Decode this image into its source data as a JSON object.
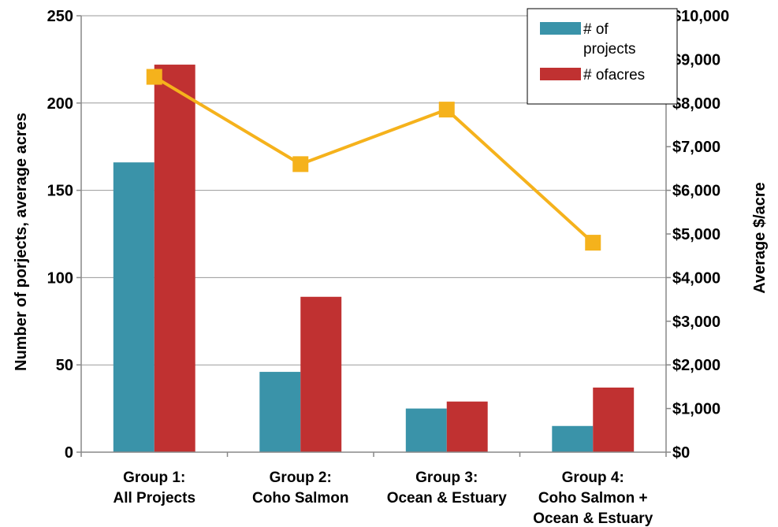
{
  "chart_data": {
    "type": "bar",
    "categories": [
      [
        "Group 1:",
        "All Projects"
      ],
      [
        "Group 2:",
        "Coho Salmon"
      ],
      [
        "Group 3:",
        "Ocean & Estuary"
      ],
      [
        "Group 4:",
        "Coho Salmon +",
        "Ocean & Estuary"
      ]
    ],
    "series": [
      {
        "name": "# of projects",
        "legend_lines": [
          "# of",
          "projects"
        ],
        "type": "bar",
        "axis": "left",
        "color": "#3a93a9",
        "values": [
          166,
          46,
          25,
          15
        ]
      },
      {
        "name": "# ofacres",
        "legend_lines": [
          "# ofacres"
        ],
        "type": "bar",
        "axis": "left",
        "color": "#c03131",
        "values": [
          222,
          89,
          29,
          37
        ]
      },
      {
        "name": "",
        "type": "line",
        "axis": "right",
        "color": "#f5b21c",
        "marker": "square",
        "values": [
          8600,
          6600,
          7850,
          4800
        ]
      }
    ],
    "ylabel": "Number of porjects, average acres",
    "y2label": "Average $/acre",
    "ylim": [
      0,
      250
    ],
    "y2lim": [
      0,
      10000
    ],
    "yticks": [
      "0",
      "50",
      "100",
      "150",
      "200",
      "250"
    ],
    "y2ticks": [
      "$0",
      "$1,000",
      "$2,000",
      "$3,000",
      "$4,000",
      "$5,000",
      "$6,000",
      "$7,000",
      "$8,000",
      "$9,000",
      "$10,000"
    ],
    "grid": true,
    "legend_position": "top-right"
  }
}
